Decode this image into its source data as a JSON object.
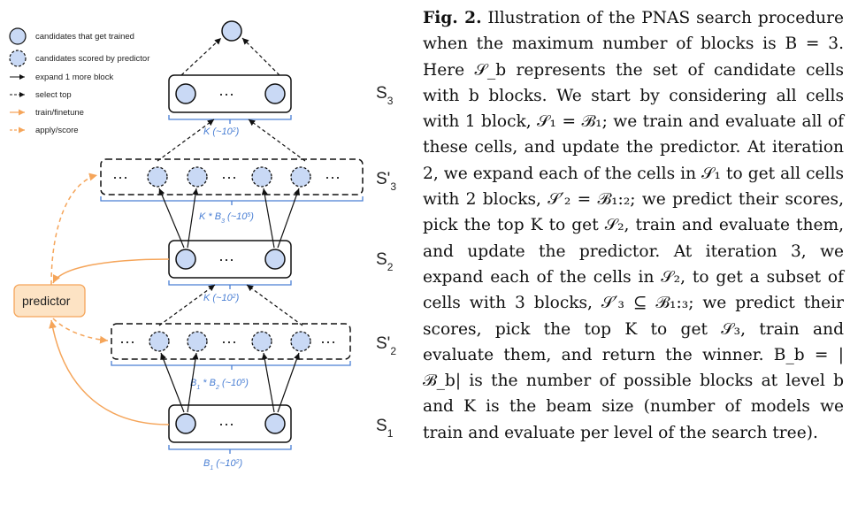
{
  "legend": {
    "trained": "candidates that get trained",
    "scored": "candidates scored by predictor",
    "expand": "expand 1 more block",
    "select": "select top",
    "train": "train/finetune",
    "apply": "apply/score"
  },
  "levels": {
    "s3": "S",
    "s3_sub": "3",
    "s3p": "S'",
    "s3p_sub": "3",
    "s2": "S",
    "s2_sub": "2",
    "s2p": "S'",
    "s2p_sub": "2",
    "s1": "S",
    "s1_sub": "1"
  },
  "counts": {
    "k3": "K (~10",
    "k3_sup": "2",
    "k3_end": ")",
    "kb3": "K * B",
    "kb3_sub": "3",
    "kb3_mid": " (~10",
    "kb3_sup": "5",
    "kb3_end": ")",
    "k2": "K (~10",
    "k2_sup": "2",
    "k2_end": ")",
    "b1b2": "B",
    "b1b2_sub1": "1",
    "b1b2_mid": " * B",
    "b1b2_sub2": "2",
    "b1b2_mid2": " (~10",
    "b1b2_sup": "5",
    "b1b2_end": ")",
    "b1": "B",
    "b1_sub": "1",
    "b1_mid": " (~10",
    "b1_sup": "2",
    "b1_end": ")"
  },
  "dots": "···",
  "predictor": "predictor",
  "caption": {
    "label": "Fig. 2.",
    "text": " Illustration of the PNAS search procedure when the maximum number of blocks is B = 3. Here 𝒮_b represents the set of candidate cells with b blocks. We start by considering all cells with 1 block, 𝒮₁ = ℬ₁; we train and evaluate all of these cells, and update the predictor. At iteration 2, we expand each of the cells in 𝒮₁ to get all cells with 2 blocks, 𝒮′₂ = ℬ₁:₂; we predict their scores, pick the top K to get 𝒮₂, train and evaluate them, and update the predictor. At iteration 3, we expand each of the cells in 𝒮₂, to get a subset of cells with 3 blocks, 𝒮′₃ ⊆ ℬ₁:₃; we predict their scores, pick the top K to get 𝒮₃, train and evaluate them, and return the winner. B_b = |ℬ_b| is the number of possible blocks at level b and K is the beam size (number of models we train and evaluate per level of the search tree)."
  },
  "colors": {
    "node_fill": "#c9d9f5",
    "blue": "#4a7fd4",
    "orange": "#f5a55a",
    "predictor_fill": "#fde3c4"
  }
}
